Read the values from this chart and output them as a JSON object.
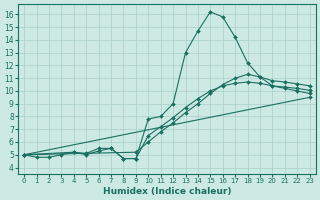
{
  "xlabel": "Humidex (Indice chaleur)",
  "xlim": [
    -0.5,
    23.5
  ],
  "ylim": [
    3.5,
    16.8
  ],
  "xticks": [
    0,
    1,
    2,
    3,
    4,
    5,
    6,
    7,
    8,
    9,
    10,
    11,
    12,
    13,
    14,
    15,
    16,
    17,
    18,
    19,
    20,
    21,
    22,
    23
  ],
  "yticks": [
    4,
    5,
    6,
    7,
    8,
    9,
    10,
    11,
    12,
    13,
    14,
    15,
    16
  ],
  "bg_color": "#cce9e4",
  "line_color": "#1a7060",
  "grid_color": "#aacfc8",
  "lines": [
    {
      "x": [
        0,
        1,
        2,
        3,
        4,
        5,
        6,
        7,
        8,
        9,
        10,
        11,
        12,
        13,
        14,
        15,
        16,
        17,
        18,
        19,
        20,
        21,
        22,
        23
      ],
      "y": [
        5.0,
        4.8,
        4.8,
        5.0,
        5.2,
        5.0,
        5.3,
        5.5,
        4.7,
        4.7,
        7.8,
        8.0,
        9.0,
        13.0,
        14.7,
        16.2,
        15.8,
        14.2,
        12.2,
        11.1,
        10.4,
        10.2,
        10.0,
        9.8
      ]
    },
    {
      "x": [
        0,
        23
      ],
      "y": [
        5.0,
        9.5
      ]
    },
    {
      "x": [
        0,
        9,
        10,
        11,
        12,
        13,
        14,
        15,
        16,
        17,
        18,
        19,
        20,
        21,
        22,
        23
      ],
      "y": [
        5.0,
        5.2,
        6.0,
        6.8,
        7.5,
        8.3,
        9.0,
        9.8,
        10.5,
        11.0,
        11.3,
        11.1,
        10.8,
        10.7,
        10.55,
        10.4
      ]
    },
    {
      "x": [
        0,
        4,
        5,
        6,
        7,
        8,
        9,
        10,
        11,
        12,
        13,
        14,
        15,
        16,
        17,
        18,
        19,
        20,
        21,
        22,
        23
      ],
      "y": [
        5.0,
        5.2,
        5.1,
        5.5,
        5.5,
        4.7,
        4.7,
        6.5,
        7.2,
        7.9,
        8.7,
        9.4,
        10.0,
        10.4,
        10.6,
        10.7,
        10.6,
        10.4,
        10.3,
        10.2,
        10.05
      ]
    }
  ]
}
